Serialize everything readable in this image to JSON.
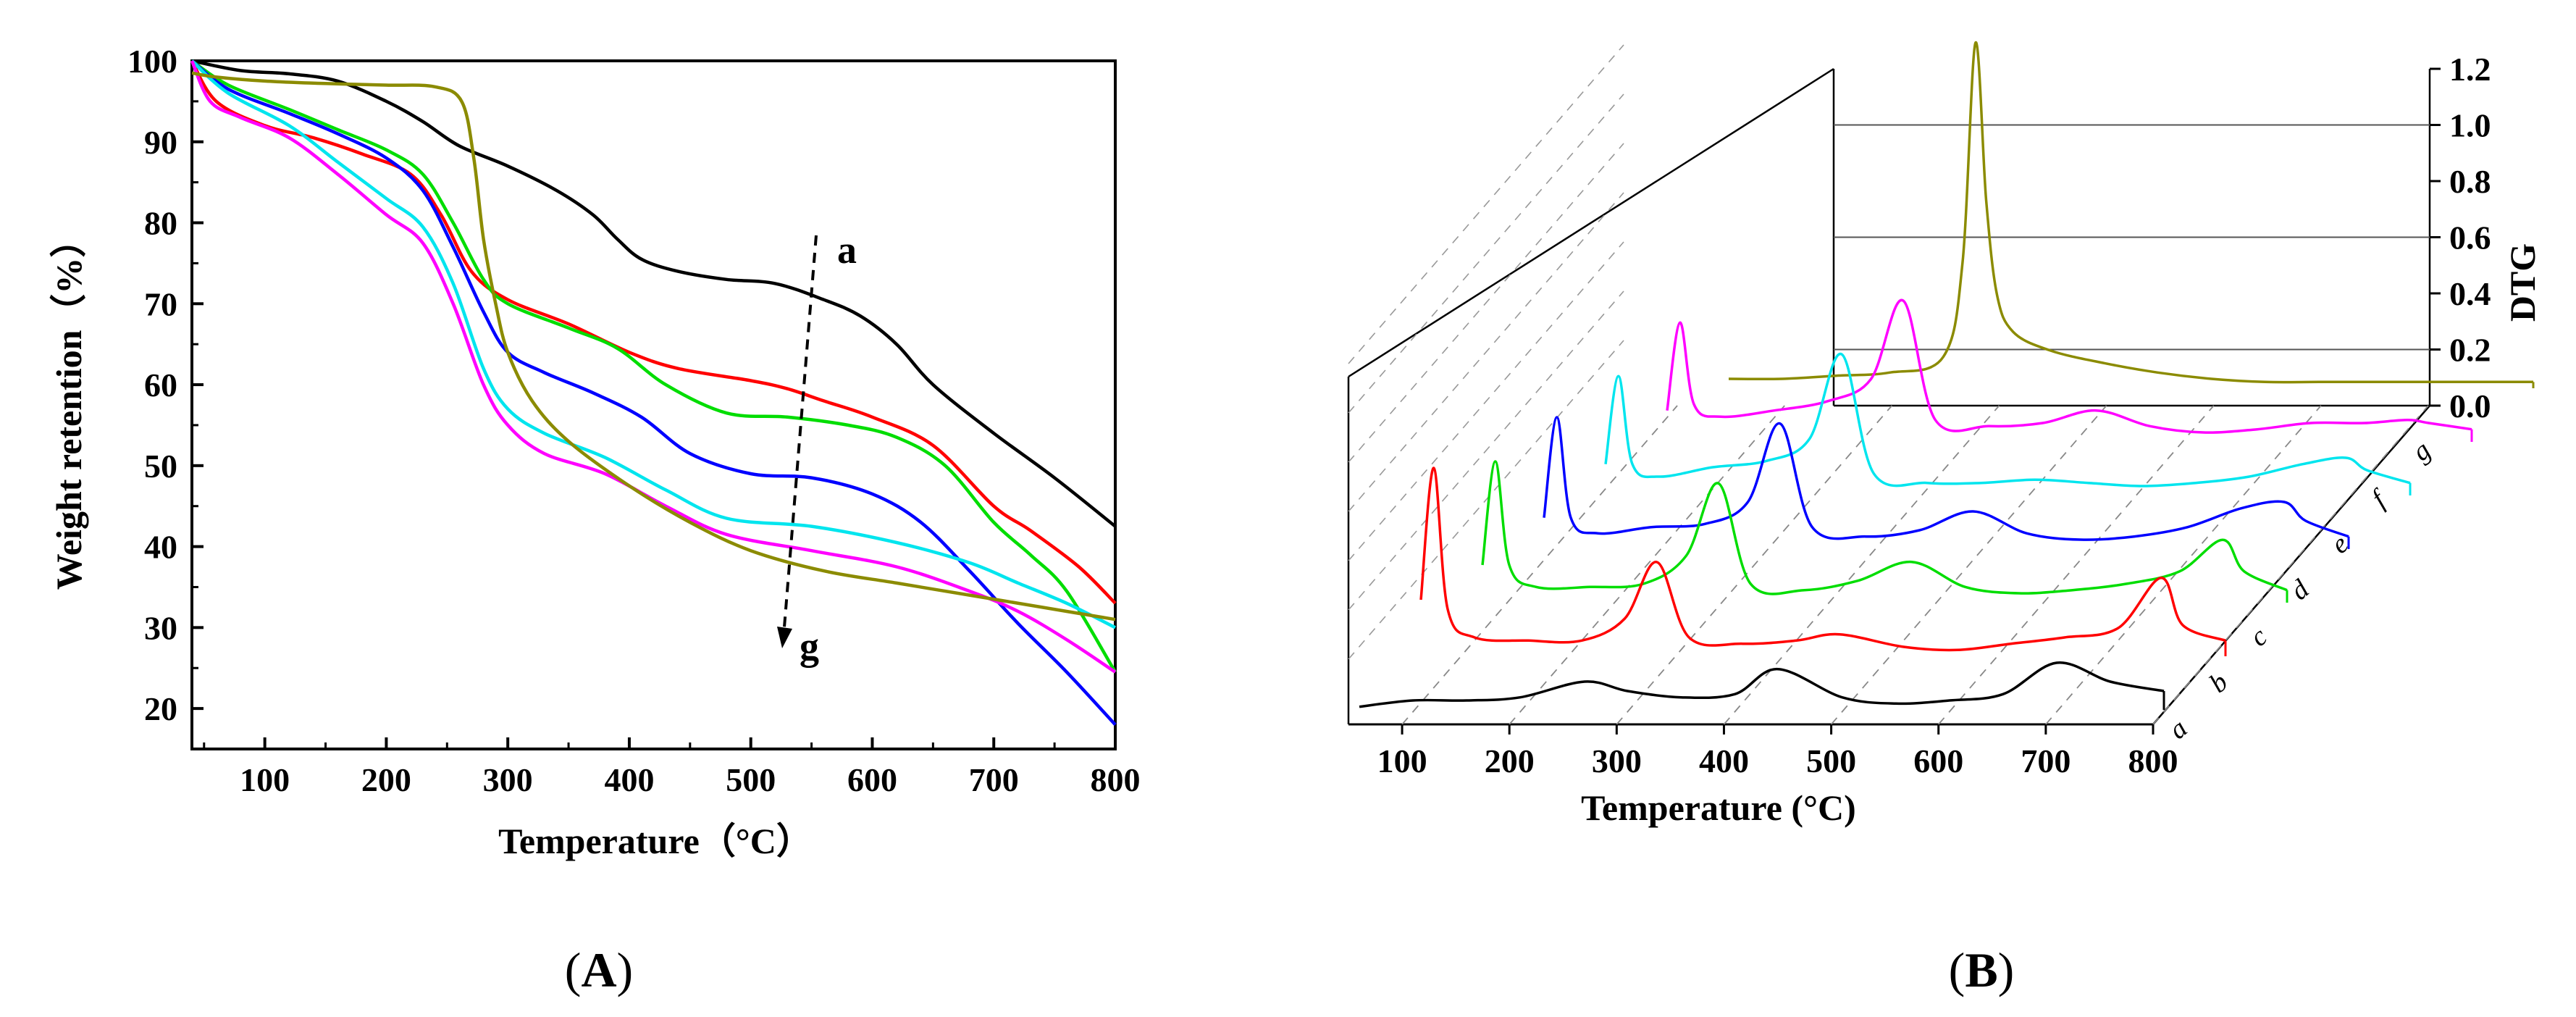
{
  "figure": {
    "panel_a_label": {
      "open": "(",
      "letter": "A",
      "close": ")"
    },
    "panel_b_label": {
      "open": "(",
      "letter": "B",
      "close": ")"
    }
  },
  "chart_data": [
    {
      "type": "line",
      "title": "",
      "xlabel": "Temperature（°C）",
      "ylabel": "Weight retention（%）",
      "xlim": [
        40,
        800
      ],
      "ylim": [
        15,
        100
      ],
      "xticks": [
        100,
        200,
        300,
        400,
        500,
        600,
        700,
        800
      ],
      "yticks": [
        20,
        30,
        40,
        50,
        60,
        70,
        80,
        90,
        100
      ],
      "annotations": {
        "start": "a",
        "end": "g"
      },
      "series": [
        {
          "name": "a",
          "color": "#000000",
          "x": [
            40,
            80,
            120,
            160,
            200,
            230,
            260,
            300,
            340,
            370,
            390,
            410,
            440,
            480,
            520,
            560,
            590,
            620,
            650,
            700,
            750,
            800
          ],
          "y": [
            100,
            98.8,
            98.4,
            97.5,
            95,
            92.5,
            89.5,
            87,
            84,
            81,
            78,
            75.5,
            74,
            73,
            72.5,
            70.5,
            68.5,
            65,
            60,
            54,
            48.5,
            42.5
          ]
        },
        {
          "name": "b",
          "color": "#ff0000",
          "x": [
            40,
            60,
            100,
            140,
            180,
            220,
            245,
            270,
            300,
            350,
            400,
            440,
            500,
            530,
            560,
            600,
            650,
            700,
            730,
            770,
            800
          ],
          "y": [
            100,
            95,
            92,
            90.5,
            88.5,
            86,
            81,
            74,
            70.5,
            67.5,
            64,
            62,
            60.5,
            59.5,
            58,
            56,
            52.5,
            45,
            42,
            37.5,
            33
          ]
        },
        {
          "name": "c",
          "color": "#00dd00",
          "x": [
            40,
            70,
            120,
            160,
            200,
            230,
            255,
            280,
            300,
            350,
            390,
            430,
            480,
            530,
            580,
            620,
            660,
            700,
            730,
            760,
            800
          ],
          "y": [
            100,
            97,
            94,
            91.5,
            89,
            86,
            80,
            73,
            70,
            67,
            64.5,
            60,
            56.5,
            56,
            55,
            53.5,
            50,
            43,
            39,
            34.5,
            24.5
          ]
        },
        {
          "name": "d",
          "color": "#0000ff",
          "x": [
            40,
            70,
            120,
            160,
            200,
            230,
            255,
            280,
            300,
            330,
            370,
            410,
            450,
            500,
            550,
            600,
            640,
            680,
            720,
            760,
            800
          ],
          "y": [
            100,
            96.5,
            93.5,
            91,
            88,
            84,
            77,
            69,
            64,
            61.5,
            59,
            56,
            51.5,
            49,
            48.5,
            46.5,
            43,
            37,
            30.5,
            24.5,
            18
          ]
        },
        {
          "name": "e",
          "color": "#00e5ee",
          "x": [
            40,
            70,
            120,
            160,
            200,
            230,
            255,
            280,
            300,
            330,
            380,
            430,
            480,
            550,
            620,
            680,
            720,
            760,
            800
          ],
          "y": [
            100,
            96,
            92,
            87.5,
            83,
            79.5,
            72.5,
            62,
            57,
            54,
            51,
            47,
            43.5,
            42.5,
            40.5,
            38,
            35.5,
            33,
            30
          ]
        },
        {
          "name": "f",
          "color": "#ff00ff",
          "x": [
            40,
            55,
            80,
            120,
            160,
            200,
            230,
            255,
            280,
            300,
            330,
            380,
            430,
            480,
            550,
            620,
            680,
            720,
            760,
            800
          ],
          "y": [
            100,
            95,
            93,
            90.5,
            86,
            81,
            77.5,
            70,
            60,
            55,
            51.5,
            49,
            45,
            41.5,
            39.5,
            37.5,
            34.5,
            32,
            28.5,
            24.5
          ]
        },
        {
          "name": "g",
          "color": "#8b8b00",
          "x": [
            40,
            60,
            100,
            150,
            200,
            240,
            262,
            272,
            280,
            290,
            300,
            320,
            350,
            400,
            450,
            500,
            560,
            620,
            680,
            740,
            800
          ],
          "y": [
            98.5,
            98,
            97.5,
            97.2,
            97,
            96.8,
            95,
            88,
            78,
            70,
            64,
            58,
            53,
            47.5,
            43,
            39.5,
            37,
            35.5,
            34,
            32.5,
            31
          ]
        }
      ]
    },
    {
      "type": "line",
      "title": "",
      "xlabel": "Temperature (°C)",
      "ylabel": "DTG",
      "xlim": [
        50,
        800
      ],
      "zlim": [
        0,
        1.2
      ],
      "xticks": [
        100,
        200,
        300,
        400,
        500,
        600,
        700,
        800
      ],
      "zticks": [
        "0.0",
        "0.2",
        "0.4",
        "0.6",
        "0.8",
        "1.0",
        "1.2"
      ],
      "depth_labels": [
        "a",
        "b",
        "c",
        "d",
        "e",
        "f",
        "g"
      ],
      "series": [
        {
          "name": "a",
          "color": "#000000",
          "x": [
            50,
            100,
            150,
            200,
            260,
            300,
            350,
            400,
            440,
            500,
            550,
            600,
            650,
            700,
            750,
            800
          ],
          "y": [
            0.01,
            0.03,
            0.03,
            0.04,
            0.09,
            0.06,
            0.04,
            0.05,
            0.13,
            0.04,
            0.02,
            0.03,
            0.05,
            0.15,
            0.09,
            0.06
          ]
        },
        {
          "name": "b",
          "color": "#ff0000",
          "x": [
            50,
            62,
            75,
            100,
            150,
            200,
            240,
            270,
            300,
            350,
            400,
            440,
            500,
            550,
            600,
            650,
            700,
            740,
            760,
            800
          ],
          "y": [
            0.18,
            0.6,
            0.15,
            0.06,
            0.05,
            0.05,
            0.12,
            0.3,
            0.06,
            0.04,
            0.05,
            0.07,
            0.03,
            0.02,
            0.04,
            0.06,
            0.09,
            0.25,
            0.1,
            0.05
          ]
        },
        {
          "name": "c",
          "color": "#00dd00",
          "x": [
            50,
            62,
            75,
            100,
            150,
            200,
            240,
            270,
            300,
            350,
            400,
            450,
            500,
            550,
            600,
            650,
            700,
            740,
            760,
            800
          ],
          "y": [
            0.12,
            0.45,
            0.12,
            0.05,
            0.05,
            0.06,
            0.15,
            0.38,
            0.06,
            0.04,
            0.07,
            0.13,
            0.05,
            0.03,
            0.04,
            0.06,
            0.1,
            0.2,
            0.1,
            0.04
          ]
        },
        {
          "name": "d",
          "color": "#0000ff",
          "x": [
            50,
            62,
            75,
            100,
            150,
            200,
            240,
            270,
            300,
            350,
            400,
            450,
            500,
            550,
            600,
            650,
            700,
            740,
            760,
            800
          ],
          "y": [
            0.1,
            0.42,
            0.1,
            0.05,
            0.07,
            0.08,
            0.15,
            0.4,
            0.07,
            0.04,
            0.06,
            0.12,
            0.05,
            0.03,
            0.04,
            0.07,
            0.13,
            0.15,
            0.09,
            0.04
          ]
        },
        {
          "name": "e",
          "color": "#00e5ee",
          "x": [
            50,
            62,
            75,
            100,
            150,
            200,
            240,
            270,
            300,
            350,
            400,
            450,
            500,
            550,
            600,
            650,
            700,
            740,
            760,
            800
          ],
          "y": [
            0.1,
            0.38,
            0.1,
            0.06,
            0.09,
            0.11,
            0.18,
            0.45,
            0.07,
            0.04,
            0.04,
            0.05,
            0.04,
            0.03,
            0.04,
            0.06,
            0.1,
            0.12,
            0.08,
            0.04
          ]
        },
        {
          "name": "f",
          "color": "#ff00ff",
          "x": [
            50,
            62,
            75,
            100,
            150,
            200,
            240,
            270,
            300,
            350,
            400,
            450,
            500,
            550,
            600,
            650,
            700,
            740,
            760,
            800
          ],
          "y": [
            0.1,
            0.38,
            0.12,
            0.08,
            0.1,
            0.13,
            0.2,
            0.45,
            0.07,
            0.05,
            0.06,
            0.1,
            0.05,
            0.03,
            0.04,
            0.06,
            0.06,
            0.07,
            0.06,
            0.04
          ]
        },
        {
          "name": "g",
          "color": "#8b8b00",
          "x": [
            50,
            100,
            150,
            200,
            250,
            268,
            280,
            290,
            300,
            315,
            350,
            400,
            450,
            500,
            550,
            600,
            650,
            700,
            750,
            800
          ],
          "y": [
            0.03,
            0.03,
            0.04,
            0.05,
            0.1,
            0.4,
            1.1,
            0.6,
            0.3,
            0.18,
            0.12,
            0.08,
            0.05,
            0.03,
            0.02,
            0.02,
            0.02,
            0.02,
            0.02,
            0.02
          ]
        }
      ]
    }
  ]
}
